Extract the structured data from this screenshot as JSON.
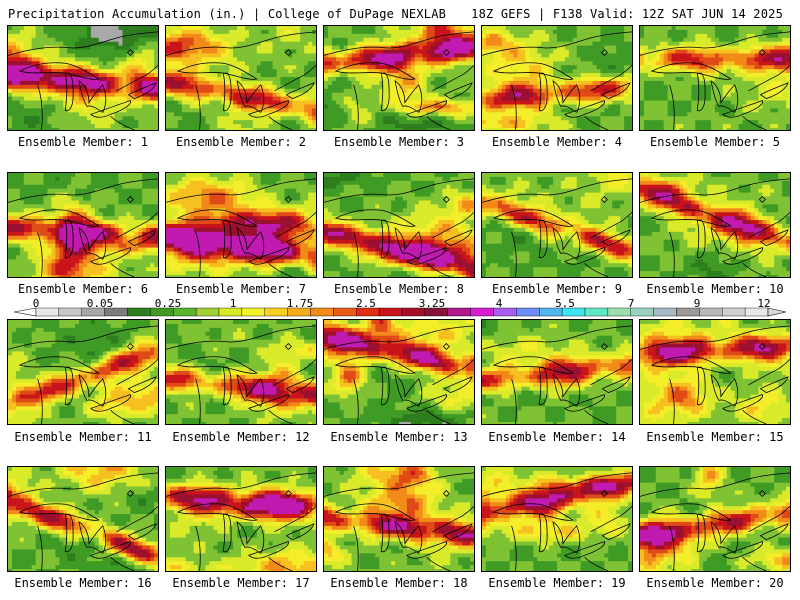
{
  "header": {
    "left": "Precipitation Accumulation (in.) | College of DuPage NEXLAB",
    "right": "18Z GEFS | F138 Valid: 12Z SAT JUN 14 2025"
  },
  "colorbar": {
    "labels": [
      "0",
      "0.05",
      "0.25",
      "1",
      "1.75",
      "2.5",
      "3.25",
      "4",
      "5.5",
      "7",
      "9",
      "12"
    ],
    "colors": [
      "#e6e6e6",
      "#c8c8c8",
      "#a8a8a8",
      "#7c7c7c",
      "#2e7d1e",
      "#3f9b25",
      "#59b32b",
      "#9fd034",
      "#d8ea2a",
      "#f4f12a",
      "#f6cf21",
      "#f6ad1d",
      "#f28a1a",
      "#ea5b17",
      "#e02f15",
      "#c8141a",
      "#a40f29",
      "#861436",
      "#b01a8a",
      "#d61fd0",
      "#a85cf0",
      "#6f8ef5",
      "#52b7f0",
      "#3fe6f0",
      "#5fe8c8",
      "#9ae0ae",
      "#9ad2be",
      "#a9b9c6",
      "#9a9a9a",
      "#b8b8b8",
      "#d0d0d0",
      "#e8e8e8"
    ]
  },
  "panels": [
    {
      "caption": "Ensemble Member: 1",
      "seed": 11,
      "wet": 0.55
    },
    {
      "caption": "Ensemble Member: 2",
      "seed": 23,
      "wet": 0.5
    },
    {
      "caption": "Ensemble Member: 3",
      "seed": 37,
      "wet": 0.7
    },
    {
      "caption": "Ensemble Member: 4",
      "seed": 41,
      "wet": 0.45
    },
    {
      "caption": "Ensemble Member: 5",
      "seed": 53,
      "wet": 0.35
    },
    {
      "caption": "Ensemble Member: 6",
      "seed": 61,
      "wet": 0.55
    },
    {
      "caption": "Ensemble Member: 7",
      "seed": 73,
      "wet": 0.75
    },
    {
      "caption": "Ensemble Member: 8",
      "seed": 89,
      "wet": 0.7
    },
    {
      "caption": "Ensemble Member: 9",
      "seed": 97,
      "wet": 0.45
    },
    {
      "caption": "Ensemble Member: 10",
      "seed": 101,
      "wet": 0.6
    },
    {
      "caption": "Ensemble Member: 11",
      "seed": 113,
      "wet": 0.5
    },
    {
      "caption": "Ensemble Member: 12",
      "seed": 127,
      "wet": 0.5
    },
    {
      "caption": "Ensemble Member: 13",
      "seed": 139,
      "wet": 0.75
    },
    {
      "caption": "Ensemble Member: 14",
      "seed": 149,
      "wet": 0.4
    },
    {
      "caption": "Ensemble Member: 15",
      "seed": 157,
      "wet": 0.6
    },
    {
      "caption": "Ensemble Member: 16",
      "seed": 163,
      "wet": 0.55
    },
    {
      "caption": "Ensemble Member: 17",
      "seed": 173,
      "wet": 0.6
    },
    {
      "caption": "Ensemble Member: 18",
      "seed": 181,
      "wet": 0.55
    },
    {
      "caption": "Ensemble Member: 19",
      "seed": 191,
      "wet": 0.45
    },
    {
      "caption": "Ensemble Member: 20",
      "seed": 199,
      "wet": 0.55
    }
  ]
}
